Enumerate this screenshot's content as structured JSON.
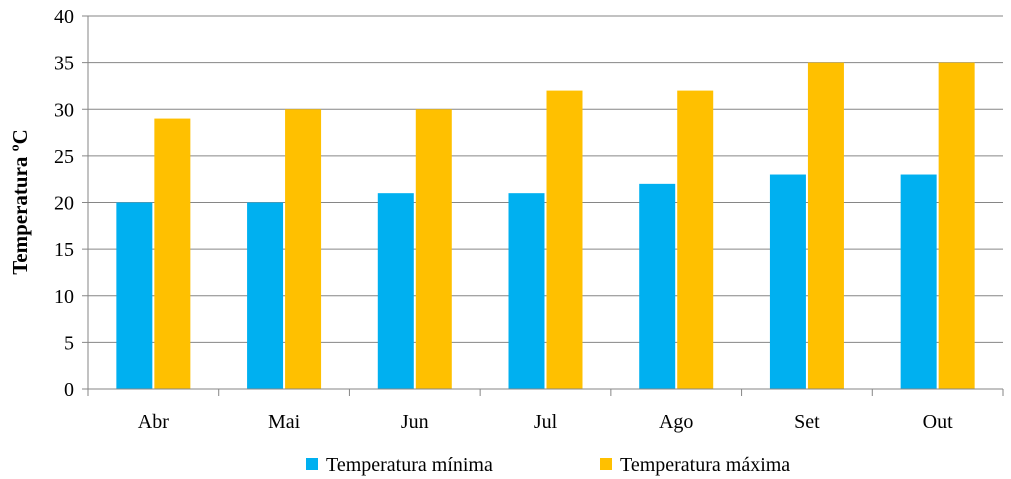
{
  "chart_data": {
    "type": "bar",
    "categories": [
      "Abr",
      "Mai",
      "Jun",
      "Jul",
      "Ago",
      "Set",
      "Out"
    ],
    "series": [
      {
        "name": "Temperatura mínima",
        "values": [
          20,
          20,
          21,
          21,
          22,
          23,
          23
        ],
        "color": "#00B0F0"
      },
      {
        "name": "Temperatura máxima",
        "values": [
          29,
          30,
          30,
          32,
          32,
          35,
          35
        ],
        "color": "#FFC000"
      }
    ],
    "ylabel": "Temperatura ºC",
    "xlabel": "",
    "ylim": [
      0,
      40
    ],
    "yticks": [
      "0",
      "5",
      "10",
      "15",
      "20",
      "25",
      "30",
      "35",
      "40"
    ],
    "grid": true,
    "legend_position": "bottom"
  }
}
